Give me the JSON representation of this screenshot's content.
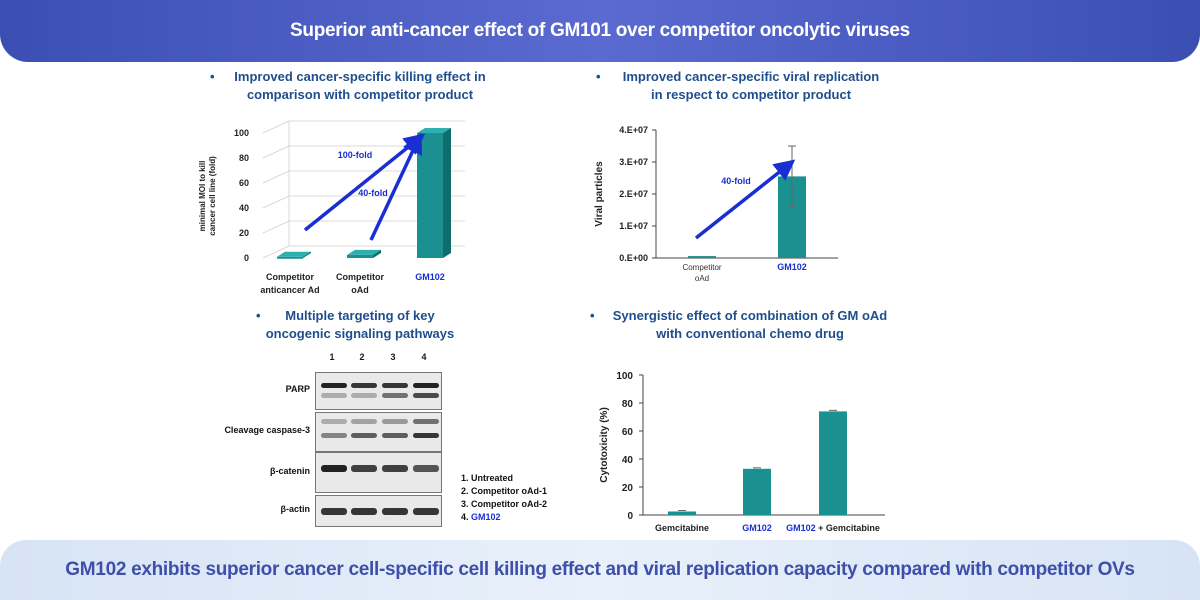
{
  "header": {
    "title": "Superior anti-cancer effect of GM101 over competitor oncolytic viruses"
  },
  "footer": {
    "text": "GM102 exhibits superior cancer cell-specific cell killing effect and viral replication capacity compared with competitor OVs"
  },
  "panels": {
    "killing": {
      "bullet": "•",
      "heading_line1": "Improved cancer-specific killing effect in",
      "heading_line2": "comparison with competitor product",
      "annotations": [
        "100-fold",
        "40-fold"
      ]
    },
    "replication": {
      "bullet": "•",
      "heading_line1": "Improved cancer-specific viral replication",
      "heading_line2": "in respect to competitor product",
      "annotations": [
        "40-fold"
      ]
    },
    "signaling": {
      "bullet": "•",
      "heading_line1": "Multiple targeting of key",
      "heading_line2": "oncogenic signaling pathways",
      "lane_numbers": [
        "1",
        "2",
        "3",
        "4"
      ],
      "rows": [
        "PARP",
        "Cleavage caspase-3",
        "β-catenin",
        "β-actin"
      ],
      "legend": [
        "1. Untreated",
        "2. Competitor oAd-1",
        "3. Competitor oAd-2",
        "4. "
      ],
      "legend_highlight": "GM102"
    },
    "synergy": {
      "bullet": "•",
      "heading_line1": "Synergistic effect of combination of GM oAd",
      "heading_line2": "with conventional chemo drug"
    }
  },
  "colors": {
    "bar": "#1a9090",
    "bar_dark": "#0f6d6d",
    "arrow": "#1a2fd1",
    "header_bg": "#4758bf",
    "footer_bg": "#dce7f6",
    "heading_text": "#1f4e8c"
  },
  "chart_data": [
    {
      "type": "bar",
      "style": "3d",
      "categories": [
        "Competitor anticancer Ad",
        "Competitor oAd",
        "GM102"
      ],
      "category_lines": [
        [
          "Competitor",
          "anticancer Ad"
        ],
        [
          "Competitor",
          "oAd"
        ],
        [
          "GM102"
        ]
      ],
      "values": [
        1,
        2.5,
        100
      ],
      "ylabel_lines": [
        "minimal MOI to kill",
        "cancer cell line (fold)"
      ],
      "ylim": [
        0,
        100
      ],
      "yticks": [
        0,
        20,
        40,
        60,
        80,
        100
      ],
      "grid": true
    },
    {
      "type": "bar",
      "categories": [
        "Competitor oAd",
        "GM102"
      ],
      "category_lines": [
        [
          "Competitor",
          "oAd"
        ],
        [
          "GM102"
        ]
      ],
      "values": [
        600000,
        25500000
      ],
      "errors": [
        0,
        9500000
      ],
      "ylabel": "Viral particles",
      "ylim": [
        0,
        40000000
      ],
      "yticks": [
        0,
        10000000,
        20000000,
        30000000,
        40000000
      ],
      "ytick_labels": [
        "0.E+00",
        "1.E+07",
        "2.E+07",
        "3.E+07",
        "4.E+07"
      ]
    },
    {
      "type": "bar",
      "categories": [
        "Gemcitabine",
        "GM102",
        "GM102 + Gemcitabine"
      ],
      "category_lines": [
        [
          "Gemcitabine"
        ],
        [
          "GM102"
        ],
        [
          "GM102",
          "+ Gemcitabine"
        ]
      ],
      "values": [
        2.5,
        33,
        74
      ],
      "ylabel": "Cytotoxicity (%)",
      "ylim": [
        0,
        100
      ],
      "yticks": [
        0,
        20,
        40,
        60,
        80,
        100
      ]
    }
  ]
}
